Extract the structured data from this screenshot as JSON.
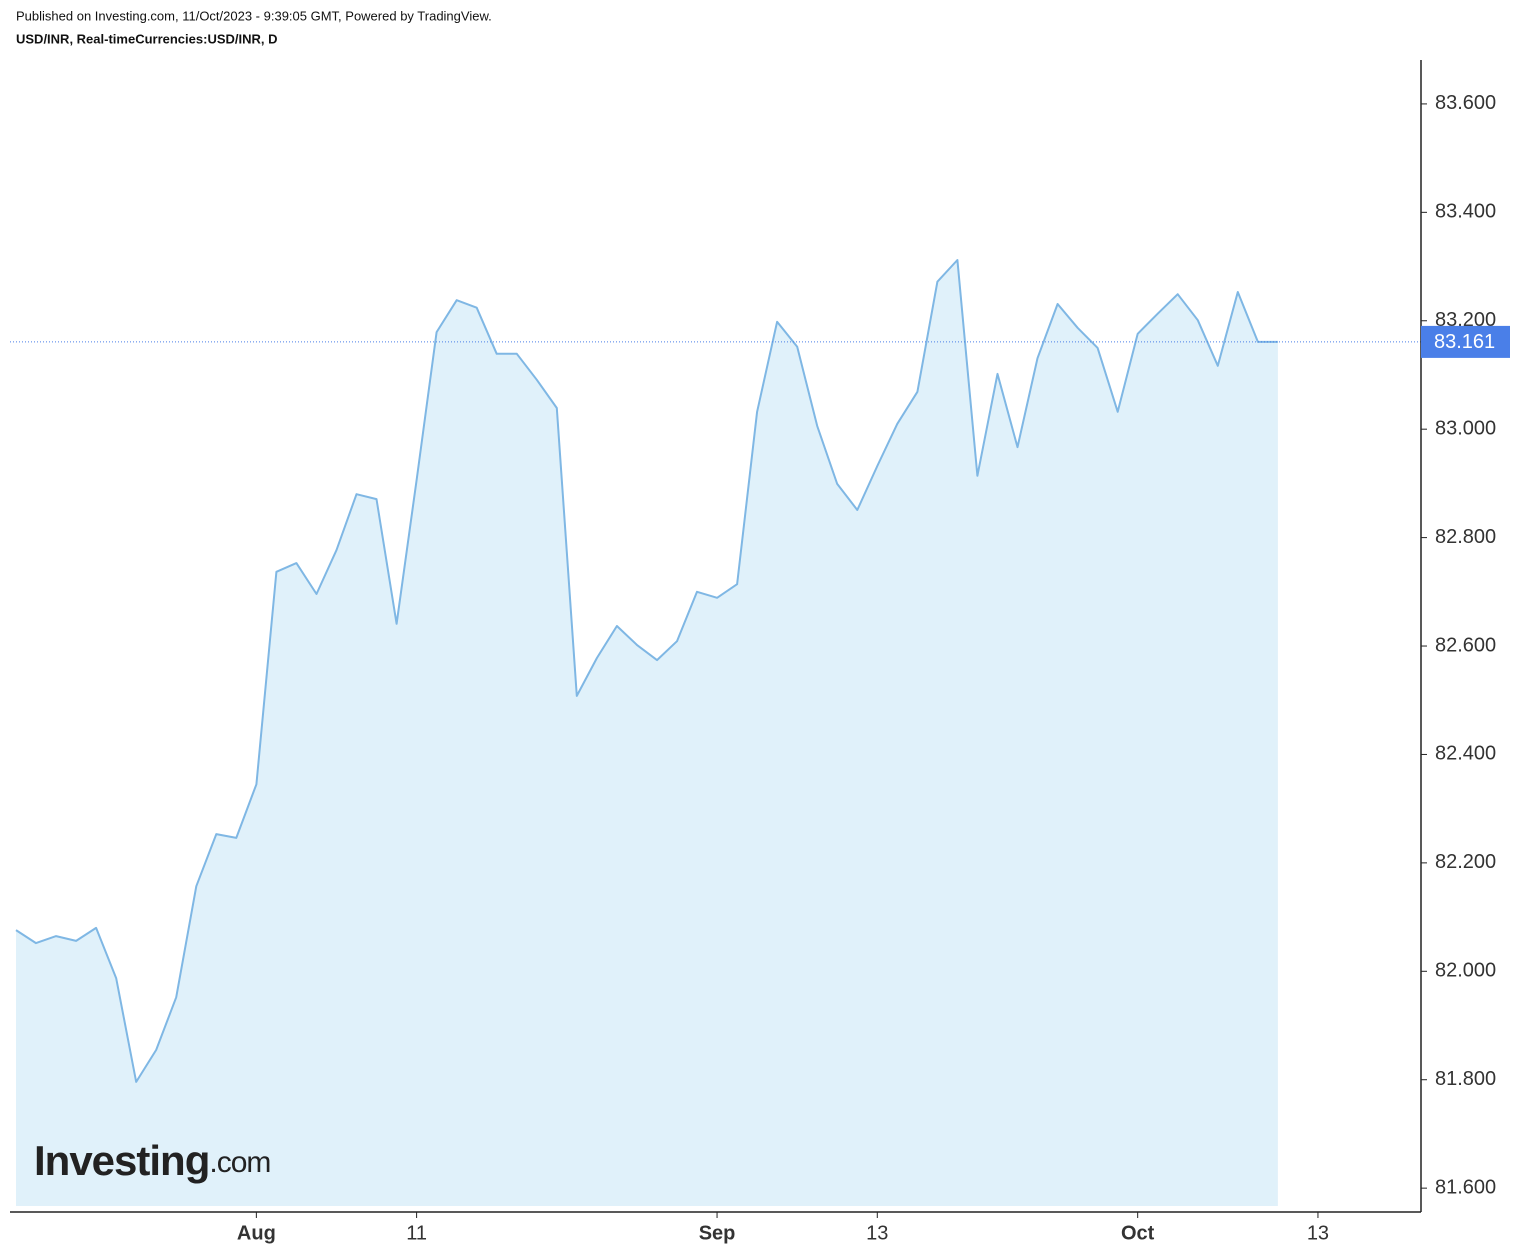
{
  "header": {
    "published": "Published on Investing.com, 11/Oct/2023 - 9:39:05 GMT, Powered by TradingView.",
    "symbol": "USD/INR, Real-timeCurrencies:USD/INR, D"
  },
  "logo": {
    "brand": "Investing",
    "suffix": ".com"
  },
  "chart_data": {
    "type": "area",
    "categories": [
      null,
      null,
      null,
      null,
      null,
      null,
      null,
      null,
      null,
      null,
      null,
      null,
      "Aug",
      null,
      null,
      null,
      null,
      null,
      null,
      null,
      "11",
      null,
      null,
      null,
      null,
      null,
      null,
      null,
      null,
      null,
      null,
      null,
      null,
      null,
      null,
      "Sep",
      null,
      null,
      null,
      null,
      null,
      null,
      null,
      "13",
      null,
      null,
      null,
      null,
      null,
      null,
      null,
      null,
      null,
      null,
      null,
      null,
      "Oct",
      null,
      null,
      null,
      null,
      null,
      null,
      null,
      null,
      "13"
    ],
    "series": [
      {
        "name": "USD/INR",
        "color": "#7fb7e4",
        "fill": "#e0f1fa",
        "values": [
          82.076,
          82.052,
          82.065,
          82.056,
          82.08,
          81.987,
          81.796,
          81.855,
          81.952,
          82.157,
          82.253,
          82.246,
          82.345,
          82.737,
          82.753,
          82.696,
          82.777,
          82.88,
          82.871,
          82.641,
          82.906,
          83.179,
          83.238,
          83.224,
          83.139,
          83.139,
          83.091,
          83.039,
          82.508,
          82.578,
          82.637,
          82.602,
          82.574,
          82.609,
          82.7,
          82.689,
          82.714,
          83.032,
          83.198,
          83.152,
          83.006,
          82.899,
          82.851,
          82.932,
          83.01,
          83.069,
          83.272,
          83.312,
          82.914,
          83.102,
          82.967,
          83.131,
          83.231,
          83.187,
          83.15,
          83.032,
          83.176,
          83.213,
          83.249,
          83.201,
          83.117,
          83.253,
          83.161,
          83.161,
          null,
          null
        ]
      }
    ],
    "ylim": [
      81.556,
      83.681
    ],
    "yticks": [
      {
        "value": 81.6,
        "label": "81.600"
      },
      {
        "value": 81.8,
        "label": "81.800"
      },
      {
        "value": 82.0,
        "label": "82.000"
      },
      {
        "value": 82.2,
        "label": "82.200"
      },
      {
        "value": 82.4,
        "label": "82.400"
      },
      {
        "value": 82.6,
        "label": "82.600"
      },
      {
        "value": 82.8,
        "label": "82.800"
      },
      {
        "value": 83.0,
        "label": "83.000"
      },
      {
        "value": 83.2,
        "label": "83.200"
      },
      {
        "value": 83.4,
        "label": "83.400"
      },
      {
        "value": 83.6,
        "label": "83.600"
      }
    ],
    "last_price_color": "#4a7fe8",
    "grid": false
  }
}
